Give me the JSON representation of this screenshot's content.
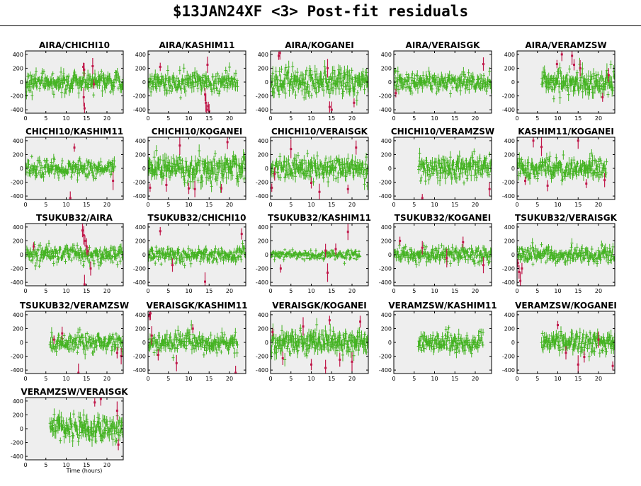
{
  "page": {
    "title": "$13JAN24XF <3> Post-fit residuals"
  },
  "colors": {
    "panel_bg": "#eeeeee",
    "good": "#44b322",
    "flagged": "#c0184a"
  },
  "chart_data": {
    "type": "scatter",
    "title": "$13JAN24XF <3> Post-fit residuals",
    "xlabel": "Time (hours)",
    "ylabel": "",
    "xlim": [
      0,
      24
    ],
    "ylim": [
      -450,
      450
    ],
    "xticks": [
      0,
      5,
      10,
      15,
      20
    ],
    "yticks": [
      -400,
      -200,
      0,
      200,
      400
    ],
    "grid": false,
    "series_names": [
      "good",
      "flagged"
    ],
    "panels": [
      {
        "name": "AIRA/CHICHI10",
        "start": 0,
        "end": 24,
        "sigma": 90,
        "flagged": [
          [
            14.2,
            220
          ],
          [
            14.4,
            180
          ],
          [
            14.3,
            -220
          ],
          [
            14.5,
            -380
          ],
          [
            16.5,
            230
          ],
          [
            16.8,
            -30
          ]
        ]
      },
      {
        "name": "AIRA/KASHIM11",
        "start": 0,
        "end": 22,
        "sigma": 85,
        "flagged": [
          [
            3,
            220
          ],
          [
            14,
            -180
          ],
          [
            14.2,
            -300
          ],
          [
            14.4,
            -400
          ],
          [
            14.6,
            250
          ],
          [
            14.8,
            -350
          ],
          [
            15,
            -420
          ]
        ]
      },
      {
        "name": "AIRA/KOGANEI",
        "start": 0,
        "end": 24,
        "sigma": 110,
        "flagged": [
          [
            2,
            380
          ],
          [
            2.3,
            420
          ],
          [
            14,
            200
          ],
          [
            14.5,
            -360
          ],
          [
            15,
            -400
          ],
          [
            20.5,
            -300
          ]
        ]
      },
      {
        "name": "AIRA/VERAISGK",
        "start": 0,
        "end": 24,
        "sigma": 80,
        "flagged": [
          [
            0.5,
            -160
          ],
          [
            22,
            260
          ]
        ]
      },
      {
        "name": "AIRA/VERAMZSW",
        "start": 6,
        "end": 24,
        "sigma": 110,
        "flagged": [
          [
            9.8,
            260
          ],
          [
            11,
            400
          ],
          [
            13.5,
            380
          ],
          [
            14,
            250
          ],
          [
            15.5,
            200
          ],
          [
            21,
            -220
          ],
          [
            22.5,
            100
          ]
        ]
      },
      {
        "name": "CHICHI10/KASHIM11",
        "start": 0,
        "end": 22,
        "sigma": 75,
        "flagged": [
          [
            12,
            300
          ],
          [
            11,
            -430
          ],
          [
            21.5,
            -180
          ]
        ]
      },
      {
        "name": "CHICHI10/KOGANEI",
        "start": 0,
        "end": 24,
        "sigma": 115,
        "flagged": [
          [
            0.5,
            -280
          ],
          [
            4.5,
            -240
          ],
          [
            7.8,
            330
          ],
          [
            10,
            -290
          ],
          [
            11.5,
            -300
          ],
          [
            18,
            -290
          ],
          [
            19.5,
            380
          ]
        ]
      },
      {
        "name": "CHICHI10/VERAISGK",
        "start": 0,
        "end": 24,
        "sigma": 95,
        "flagged": [
          [
            0.3,
            -280
          ],
          [
            1,
            -80
          ],
          [
            5,
            280
          ],
          [
            10,
            -210
          ],
          [
            12,
            -340
          ],
          [
            19,
            -300
          ],
          [
            21,
            300
          ]
        ]
      },
      {
        "name": "CHICHI10/VERAMZSW",
        "start": 6,
        "end": 24,
        "sigma": 100,
        "flagged": [
          [
            7,
            -430
          ],
          [
            23.5,
            -300
          ]
        ]
      },
      {
        "name": "KASHIM11/KOGANEI",
        "start": 0,
        "end": 22,
        "sigma": 95,
        "flagged": [
          [
            2,
            -180
          ],
          [
            4,
            400
          ],
          [
            6,
            310
          ],
          [
            7.5,
            -250
          ],
          [
            15,
            400
          ],
          [
            17,
            -220
          ],
          [
            21.5,
            -170
          ]
        ]
      },
      {
        "name": "TSUKUB32/AIRA",
        "start": 0,
        "end": 24,
        "sigma": 70,
        "flagged": [
          [
            2,
            120
          ],
          [
            14,
            350
          ],
          [
            14.3,
            280
          ],
          [
            14.6,
            200
          ],
          [
            15,
            120
          ],
          [
            15.3,
            50
          ],
          [
            16,
            -200
          ],
          [
            14.5,
            -430
          ]
        ]
      },
      {
        "name": "TSUKUB32/CHICHI10",
        "start": 0,
        "end": 24,
        "sigma": 65,
        "flagged": [
          [
            3,
            340
          ],
          [
            6,
            -150
          ],
          [
            14,
            -390
          ],
          [
            23,
            300
          ]
        ]
      },
      {
        "name": "TSUKUB32/KASHIM11",
        "start": 0,
        "end": 22,
        "sigma": 40,
        "flagged": [
          [
            2.5,
            -200
          ],
          [
            13.5,
            60
          ],
          [
            14,
            -260
          ],
          [
            16,
            80
          ],
          [
            19,
            330
          ]
        ]
      },
      {
        "name": "TSUKUB32/KOGANEI",
        "start": 0,
        "end": 24,
        "sigma": 70,
        "flagged": [
          [
            1.5,
            200
          ],
          [
            7,
            100
          ],
          [
            13,
            -50
          ],
          [
            17,
            180
          ],
          [
            22,
            -150
          ]
        ]
      },
      {
        "name": "TSUKUB32/VERAISGK",
        "start": 0,
        "end": 24,
        "sigma": 75,
        "flagged": [
          [
            0.2,
            -120
          ],
          [
            0.5,
            -250
          ],
          [
            0.8,
            -380
          ],
          [
            1.2,
            -200
          ]
        ]
      },
      {
        "name": "TSUKUB32/VERAMZSW",
        "start": 6,
        "end": 24,
        "sigma": 80,
        "flagged": [
          [
            7,
            40
          ],
          [
            9,
            130
          ],
          [
            13,
            -440
          ],
          [
            22.5,
            -150
          ],
          [
            23.5,
            -200
          ]
        ]
      },
      {
        "name": "VERAISGK/KASHIM11",
        "start": 0,
        "end": 22,
        "sigma": 85,
        "flagged": [
          [
            0.3,
            380
          ],
          [
            0.6,
            420
          ],
          [
            0.9,
            100
          ],
          [
            2.5,
            -180
          ],
          [
            7,
            -300
          ],
          [
            11,
            200
          ],
          [
            21.5,
            -440
          ]
        ]
      },
      {
        "name": "VERAISGK/KOGANEI",
        "start": 0,
        "end": 24,
        "sigma": 110,
        "flagged": [
          [
            0.5,
            150
          ],
          [
            3,
            -230
          ],
          [
            8,
            230
          ],
          [
            10,
            -320
          ],
          [
            13.5,
            -370
          ],
          [
            14.5,
            320
          ],
          [
            17,
            -250
          ],
          [
            20,
            -280
          ],
          [
            22,
            300
          ]
        ]
      },
      {
        "name": "VERAMZSW/KASHIM11",
        "start": 6,
        "end": 22,
        "sigma": 85,
        "flagged": []
      },
      {
        "name": "VERAMZSW/KOGANEI",
        "start": 6,
        "end": 24,
        "sigma": 95,
        "flagged": [
          [
            10,
            250
          ],
          [
            12,
            -150
          ],
          [
            15,
            -320
          ],
          [
            16.5,
            -210
          ],
          [
            20,
            40
          ],
          [
            23.5,
            -340
          ]
        ]
      },
      {
        "name": "VERAMZSW/VERAISGK",
        "start": 6,
        "end": 24,
        "sigma": 110,
        "flagged": [
          [
            17,
            380
          ],
          [
            18.5,
            430
          ],
          [
            22.5,
            260
          ],
          [
            22.8,
            -230
          ]
        ]
      }
    ]
  }
}
